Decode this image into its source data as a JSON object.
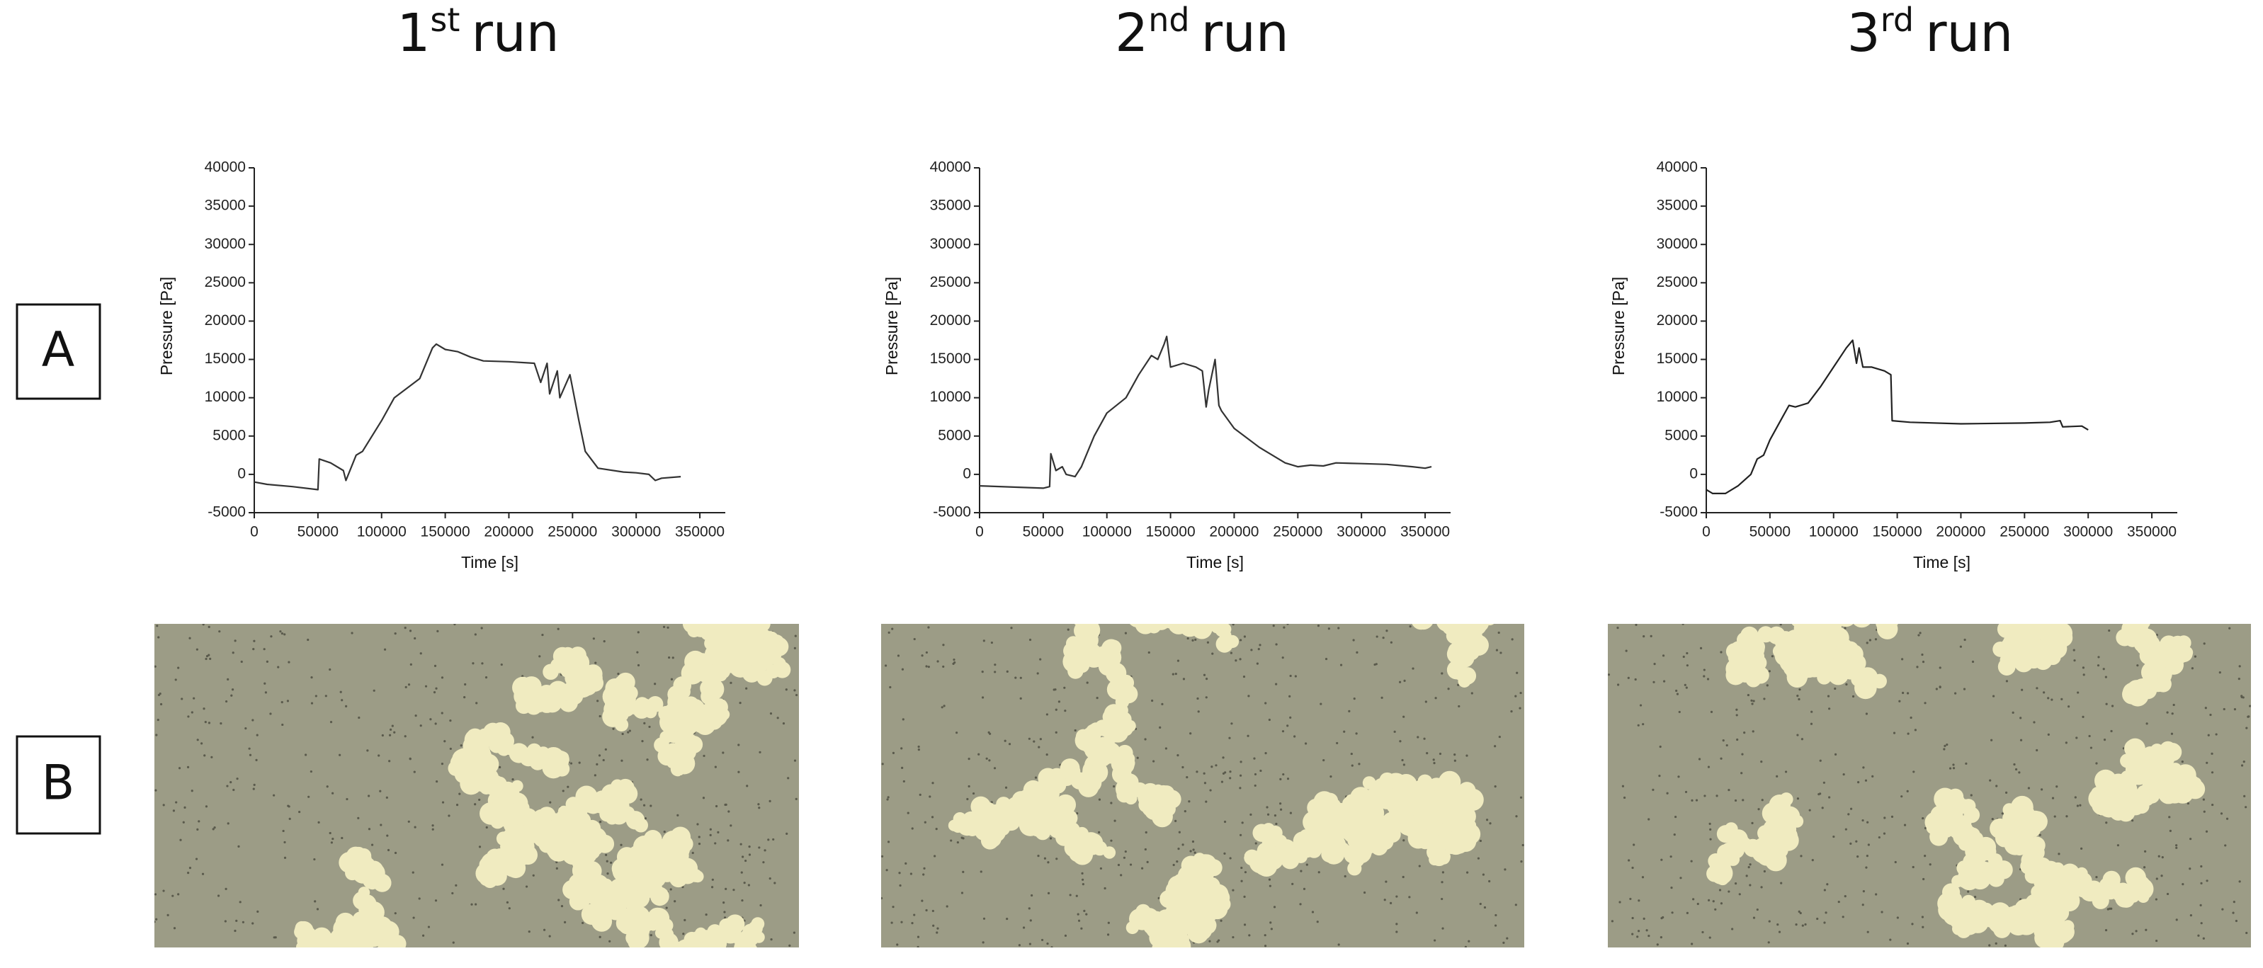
{
  "column_titles": [
    {
      "ordinal": "1",
      "suffix": "st",
      "label": "run"
    },
    {
      "ordinal": "2",
      "suffix": "nd",
      "label": "run"
    },
    {
      "ordinal": "3",
      "suffix": "rd",
      "label": "run"
    }
  ],
  "row_labels": [
    "A",
    "B"
  ],
  "chart_data": [
    {
      "type": "line",
      "x_label": "Time [s]",
      "y_label": "Pressure [Pa]",
      "xlim": [
        0,
        370000
      ],
      "ylim": [
        -5000,
        40000
      ],
      "xticks": [
        0,
        50000,
        100000,
        150000,
        200000,
        250000,
        300000,
        350000
      ],
      "yticks": [
        -5000,
        0,
        5000,
        10000,
        15000,
        20000,
        25000,
        30000,
        35000,
        40000
      ],
      "series": [
        {
          "color": "#333333",
          "x": [
            0,
            10000,
            30000,
            50000,
            51000,
            60000,
            70000,
            72000,
            80000,
            85000,
            100000,
            110000,
            130000,
            140000,
            143000,
            150000,
            160000,
            170000,
            180000,
            200000,
            220000,
            225000,
            230000,
            232000,
            238000,
            240000,
            248000,
            255000,
            260000,
            270000,
            290000,
            300000,
            310000,
            315000,
            320000,
            335000
          ],
          "values": [
            -1000,
            -1300,
            -1600,
            -2000,
            2000,
            1500,
            500,
            -800,
            2500,
            3000,
            7000,
            10000,
            12500,
            16500,
            17000,
            16300,
            16000,
            15300,
            14800,
            14700,
            14500,
            12000,
            14500,
            10500,
            13500,
            10000,
            13000,
            7000,
            3000,
            800,
            300,
            200,
            0,
            -800,
            -500,
            -300
          ]
        }
      ]
    },
    {
      "type": "line",
      "x_label": "Time [s]",
      "y_label": "Pressure [Pa]",
      "xlim": [
        0,
        370000
      ],
      "ylim": [
        -5000,
        40000
      ],
      "xticks": [
        0,
        50000,
        100000,
        150000,
        200000,
        250000,
        300000,
        350000
      ],
      "yticks": [
        -5000,
        0,
        5000,
        10000,
        15000,
        20000,
        25000,
        30000,
        35000,
        40000
      ],
      "series": [
        {
          "color": "#333333",
          "x": [
            0,
            50000,
            55000,
            56000,
            60000,
            65000,
            68000,
            75000,
            80000,
            90000,
            100000,
            115000,
            125000,
            135000,
            140000,
            145000,
            147000,
            150000,
            160000,
            170000,
            175000,
            178000,
            180000,
            185000,
            188000,
            190000,
            200000,
            220000,
            240000,
            250000,
            260000,
            270000,
            280000,
            300000,
            320000,
            340000,
            350000,
            355000
          ],
          "values": [
            -1500,
            -1800,
            -1600,
            2700,
            500,
            1000,
            0,
            -300,
            1000,
            5000,
            8000,
            10000,
            13000,
            15500,
            15000,
            17000,
            18000,
            14000,
            14500,
            14000,
            13500,
            8800,
            11000,
            15000,
            9000,
            8300,
            6000,
            3500,
            1500,
            1000,
            1200,
            1100,
            1500,
            1400,
            1300,
            1000,
            800,
            1000
          ]
        }
      ]
    },
    {
      "type": "line",
      "x_label": "Time [s]",
      "y_label": "Pressure [Pa]",
      "xlim": [
        0,
        370000
      ],
      "ylim": [
        -5000,
        40000
      ],
      "xticks": [
        0,
        50000,
        100000,
        150000,
        200000,
        250000,
        300000,
        350000
      ],
      "yticks": [
        -5000,
        0,
        5000,
        10000,
        15000,
        20000,
        25000,
        30000,
        35000,
        40000
      ],
      "series": [
        {
          "color": "#222222",
          "x": [
            0,
            5000,
            15000,
            25000,
            35000,
            40000,
            45000,
            50000,
            60000,
            65000,
            70000,
            80000,
            90000,
            100000,
            110000,
            115000,
            118000,
            120000,
            123000,
            130000,
            140000,
            145000,
            146000,
            160000,
            200000,
            250000,
            270000,
            278000,
            280000,
            295000,
            300000
          ],
          "values": [
            -2000,
            -2500,
            -2500,
            -1500,
            0,
            2000,
            2500,
            4500,
            7500,
            9000,
            8800,
            9300,
            11500,
            14000,
            16500,
            17500,
            14500,
            16500,
            14000,
            14000,
            13500,
            13000,
            7000,
            6800,
            6600,
            6700,
            6800,
            7000,
            6200,
            6300,
            5800
          ]
        }
      ]
    }
  ]
}
